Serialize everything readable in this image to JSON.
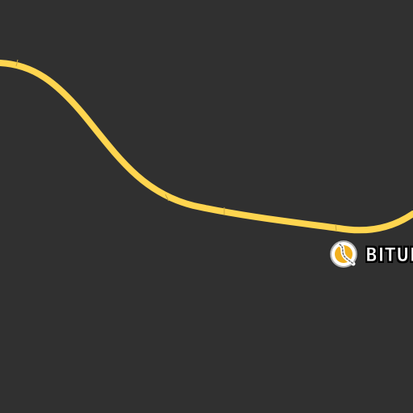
{
  "map": {
    "background_color": "#303030",
    "road_color": "#ffd54f",
    "poi": {
      "icon": "bituminous-poi-icon",
      "label": "BITUI"
    }
  }
}
